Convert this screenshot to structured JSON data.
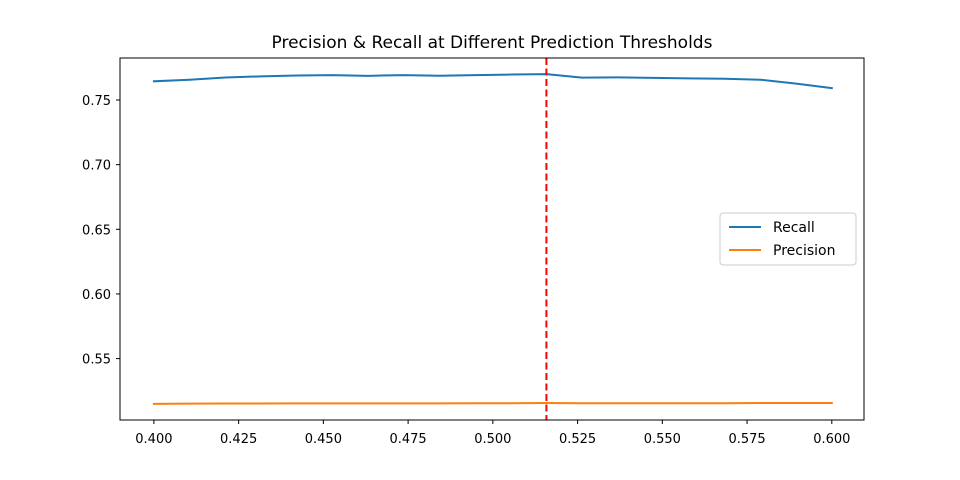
{
  "chart_data": {
    "type": "line",
    "title": "Precision & Recall at Different Prediction Thresholds",
    "xlabel": "",
    "ylabel": "",
    "xlim": [
      0.39,
      0.6095
    ],
    "ylim": [
      0.5025,
      0.7825
    ],
    "x_ticks": [
      "0.400",
      "0.425",
      "0.450",
      "0.475",
      "0.500",
      "0.525",
      "0.550",
      "0.575",
      "0.600"
    ],
    "y_ticks": [
      "0.55",
      "0.60",
      "0.65",
      "0.70",
      "0.75"
    ],
    "x": [
      0.4,
      0.4105,
      0.4211,
      0.4316,
      0.4421,
      0.4526,
      0.4632,
      0.4737,
      0.4842,
      0.4947,
      0.5053,
      0.5158,
      0.5263,
      0.5368,
      0.5474,
      0.5579,
      0.5684,
      0.5789,
      0.5895,
      0.6
    ],
    "series": [
      {
        "name": "Recall",
        "color": "#1f77b4",
        "values": [
          0.7645,
          0.7657,
          0.7674,
          0.7683,
          0.769,
          0.7693,
          0.7687,
          0.7693,
          0.7688,
          0.7693,
          0.7697,
          0.77,
          0.7673,
          0.7675,
          0.7671,
          0.7667,
          0.7664,
          0.7657,
          0.7627,
          0.7592
        ]
      },
      {
        "name": "Precision",
        "color": "#ff7f0e",
        "values": [
          0.515,
          0.5152,
          0.5153,
          0.5153,
          0.5154,
          0.5154,
          0.5154,
          0.5154,
          0.5154,
          0.5155,
          0.5155,
          0.5156,
          0.5155,
          0.5155,
          0.5155,
          0.5155,
          0.5155,
          0.5156,
          0.5156,
          0.5156
        ]
      }
    ],
    "threshold_line": {
      "x": 0.5158,
      "color": "#ff0000",
      "style": "dashed"
    },
    "legend": {
      "position": "center-right"
    },
    "grid": false
  }
}
